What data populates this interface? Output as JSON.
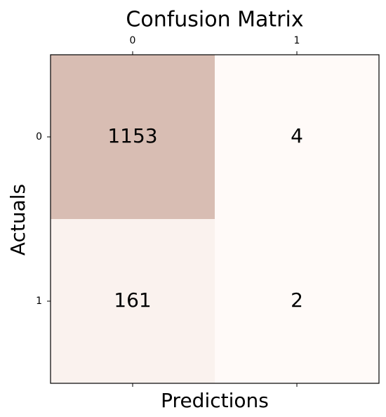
{
  "chart_data": {
    "type": "heatmap",
    "title": "Confusion Matrix",
    "x_label": "Predictions",
    "y_label": "Actuals",
    "x_categories": [
      "0",
      "1"
    ],
    "y_categories": [
      "0",
      "1"
    ],
    "values": [
      [
        1153,
        4
      ],
      [
        161,
        2
      ]
    ],
    "color_low": "#fffaf8",
    "color_high": "#d8bdb3",
    "text_color": "#000000"
  }
}
